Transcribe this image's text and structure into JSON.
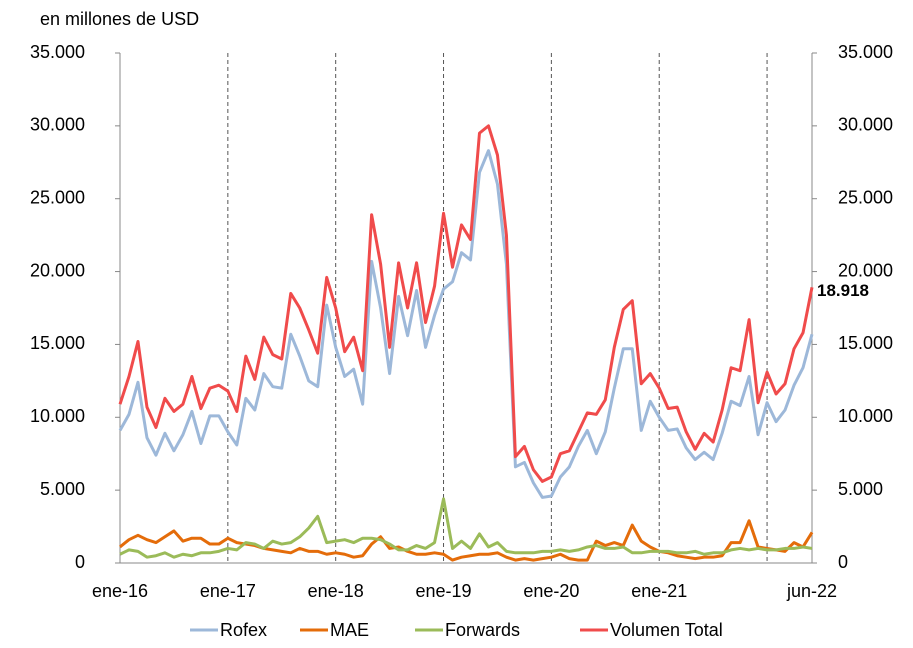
{
  "chart_data": {
    "type": "line",
    "y_label": "en millones de USD",
    "categories": [
      "ene-16",
      null,
      null,
      null,
      null,
      null,
      null,
      null,
      null,
      null,
      null,
      null,
      "ene-17",
      null,
      null,
      null,
      null,
      null,
      null,
      null,
      null,
      null,
      null,
      null,
      "ene-18",
      null,
      null,
      null,
      null,
      null,
      null,
      null,
      null,
      null,
      null,
      null,
      "ene-19",
      null,
      null,
      null,
      null,
      null,
      null,
      null,
      null,
      null,
      null,
      null,
      "ene-20",
      null,
      null,
      null,
      null,
      null,
      null,
      null,
      null,
      null,
      null,
      null,
      "ene-21",
      null,
      null,
      null,
      null,
      null,
      null,
      null,
      null,
      null,
      null,
      null,
      null,
      null,
      null,
      null,
      null,
      "jun-22"
    ],
    "series": [
      {
        "name": "Rofex",
        "color": "#9db8d9",
        "values": [
          9100,
          10200,
          12400,
          8600,
          7400,
          8900,
          7700,
          8800,
          10400,
          8200,
          10100,
          10100,
          9000,
          8100,
          11300,
          10500,
          13000,
          12100,
          12000,
          15700,
          14200,
          12500,
          12100,
          17700,
          14800,
          12800,
          13300,
          10900,
          20700,
          17500,
          13000,
          18300,
          15600,
          18700,
          14800,
          17000,
          18800,
          19300,
          21300,
          20800,
          26800,
          28300,
          26000,
          20500,
          6600,
          6900,
          5500,
          4500,
          4600,
          5900,
          6600,
          8000,
          9100,
          7500,
          9000,
          12000,
          14700,
          14700,
          9100,
          11100,
          10000,
          9100,
          9200,
          7900,
          7100,
          7600,
          7100,
          8900,
          11100,
          10800,
          12800,
          8800,
          11000,
          9700,
          10500,
          12200,
          13400,
          15700
        ]
      },
      {
        "name": "MAE",
        "color": "#e46c0a",
        "values": [
          1100,
          1600,
          1900,
          1600,
          1400,
          1800,
          2200,
          1500,
          1700,
          1700,
          1300,
          1300,
          1700,
          1400,
          1300,
          1200,
          1000,
          900,
          800,
          700,
          1000,
          800,
          800,
          600,
          700,
          600,
          400,
          500,
          1300,
          1800,
          1000,
          1100,
          800,
          600,
          600,
          700,
          600,
          200,
          400,
          500,
          600,
          600,
          700,
          400,
          200,
          300,
          200,
          300,
          400,
          600,
          300,
          200,
          200,
          1500,
          1200,
          1400,
          1200,
          2600,
          1500,
          1100,
          800,
          700,
          500,
          400,
          300,
          400,
          400,
          500,
          1400,
          1400,
          2900,
          1100,
          1000,
          900,
          800,
          1400,
          1100,
          2100
        ]
      },
      {
        "name": "Forwards",
        "color": "#9bbb59",
        "values": [
          600,
          900,
          800,
          400,
          500,
          700,
          400,
          600,
          500,
          700,
          700,
          800,
          1000,
          900,
          1400,
          1300,
          1000,
          1500,
          1300,
          1400,
          1800,
          2400,
          3200,
          1400,
          1500,
          1600,
          1400,
          1700,
          1700,
          1600,
          1300,
          900,
          900,
          1200,
          1000,
          1400,
          4400,
          1000,
          1500,
          1000,
          2000,
          1100,
          1400,
          800,
          700,
          700,
          700,
          800,
          800,
          900,
          800,
          900,
          1100,
          1200,
          1000,
          1000,
          1100,
          700,
          700,
          800,
          800,
          800,
          700,
          700,
          800,
          600,
          700,
          700,
          900,
          1000,
          900,
          1000,
          900,
          900,
          1000,
          1000,
          1100,
          1000
        ]
      },
      {
        "name": "Volumen Total",
        "color": "#f04b4b",
        "values": [
          10900,
          12800,
          15200,
          10700,
          9300,
          11300,
          10400,
          10900,
          12800,
          10600,
          12000,
          12200,
          11800,
          10400,
          14200,
          12600,
          15500,
          14300,
          14000,
          18500,
          17500,
          16000,
          14400,
          19600,
          17500,
          14500,
          15500,
          13200,
          23900,
          20500,
          14800,
          20600,
          17500,
          20600,
          16500,
          19000,
          24000,
          20300,
          23200,
          22200,
          29500,
          30000,
          28000,
          22500,
          7300,
          8000,
          6400,
          5600,
          5900,
          7500,
          7700,
          9000,
          10300,
          10200,
          11200,
          14800,
          17400,
          18000,
          12300,
          13000,
          12000,
          10600,
          10700,
          9000,
          7800,
          8900,
          8300,
          10500,
          13400,
          13200,
          16700,
          11000,
          13100,
          11600,
          12300,
          14700,
          15800,
          18918
        ],
        "value_labels": [
          null,
          null,
          null,
          null,
          null,
          null,
          null,
          null,
          null,
          null,
          null,
          null,
          null,
          null,
          null,
          null,
          null,
          null,
          null,
          null,
          null,
          null,
          null,
          null,
          null,
          null,
          null,
          null,
          null,
          null,
          null,
          null,
          null,
          null,
          null,
          null,
          null,
          null,
          null,
          null,
          null,
          null,
          null,
          null,
          null,
          null,
          null,
          null,
          null,
          null,
          null,
          null,
          null,
          null,
          null,
          null,
          null,
          null,
          null,
          null,
          null,
          null,
          null,
          null,
          null,
          null,
          null,
          null,
          null,
          null,
          null,
          null,
          null,
          null,
          null,
          null,
          null,
          "18.918"
        ]
      }
    ],
    "ylim": [
      0,
      35000
    ],
    "yticks": [
      0,
      {
        "value": 5000,
        "label": "5.000"
      },
      {
        "value": 10000,
        "label": "10.000"
      },
      {
        "value": 15000,
        "label": "15.000"
      },
      {
        "value": 20000,
        "label": "20.000"
      },
      {
        "value": 25000,
        "label": "25.000"
      },
      {
        "value": 30000,
        "label": "30.000"
      },
      {
        "value": 35000,
        "label": "35.000"
      }
    ],
    "y2lim": [
      0,
      35000
    ],
    "y2ticks": [
      0,
      {
        "value": 5000,
        "label": "5.000"
      },
      {
        "value": 10000,
        "label": "10.000"
      },
      {
        "value": 15000,
        "label": "15.000"
      },
      {
        "value": 20000,
        "label": "20.000"
      },
      {
        "value": 25000,
        "label": "25.000"
      },
      {
        "value": 30000,
        "label": "30.000"
      },
      {
        "value": 35000,
        "label": "35.000"
      }
    ],
    "legend": "bottom"
  }
}
